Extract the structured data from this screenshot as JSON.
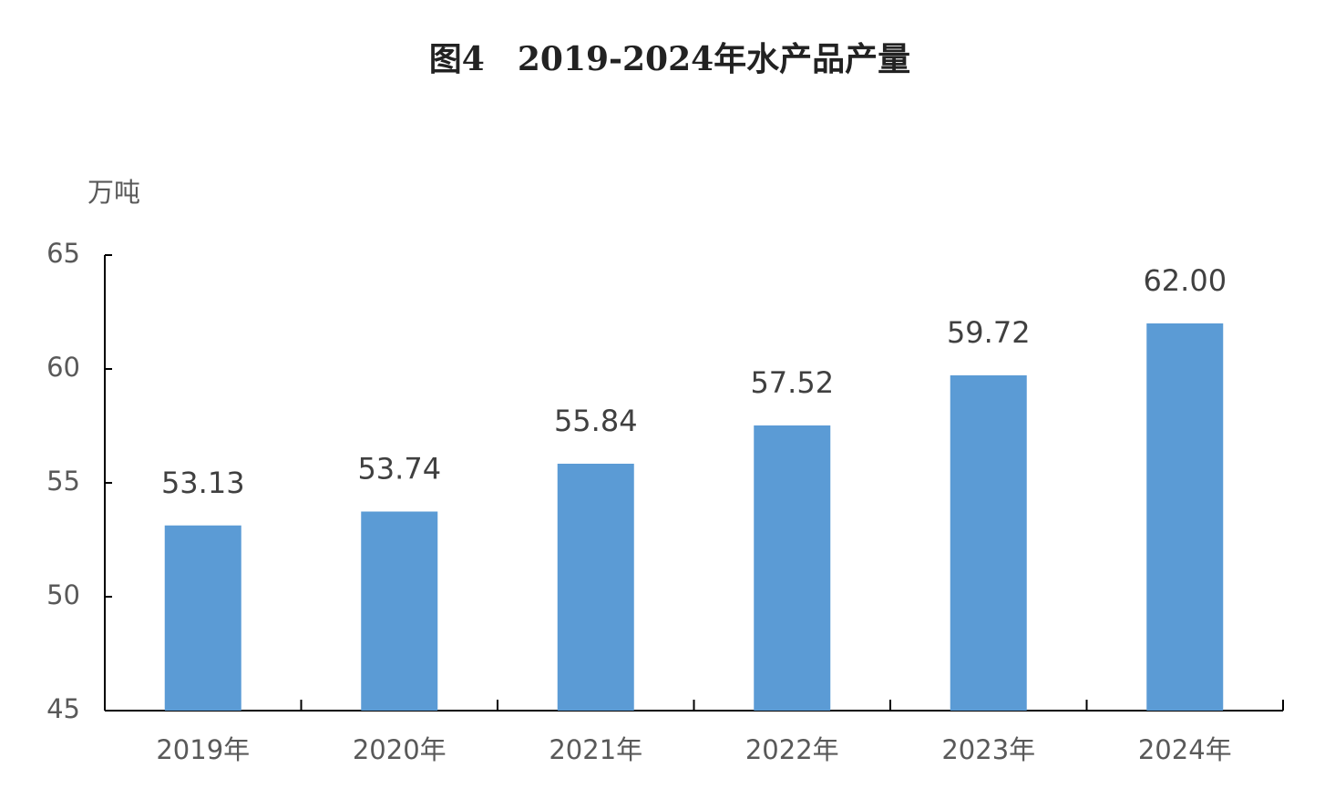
{
  "chart_data": {
    "type": "bar",
    "title": "图4　2019-2024年水产品产量",
    "y_label": "万吨",
    "categories": [
      "2019年",
      "2020年",
      "2021年",
      "2022年",
      "2023年",
      "2024年"
    ],
    "values": [
      53.13,
      53.74,
      55.84,
      57.52,
      59.72,
      62.0
    ],
    "value_labels": [
      "53.13",
      "53.74",
      "55.84",
      "57.52",
      "59.72",
      "62.00"
    ],
    "color": "#5b9bd5",
    "ylim": [
      45,
      65
    ],
    "yticks": [
      45,
      50,
      55,
      60,
      65
    ],
    "grid": false
  }
}
